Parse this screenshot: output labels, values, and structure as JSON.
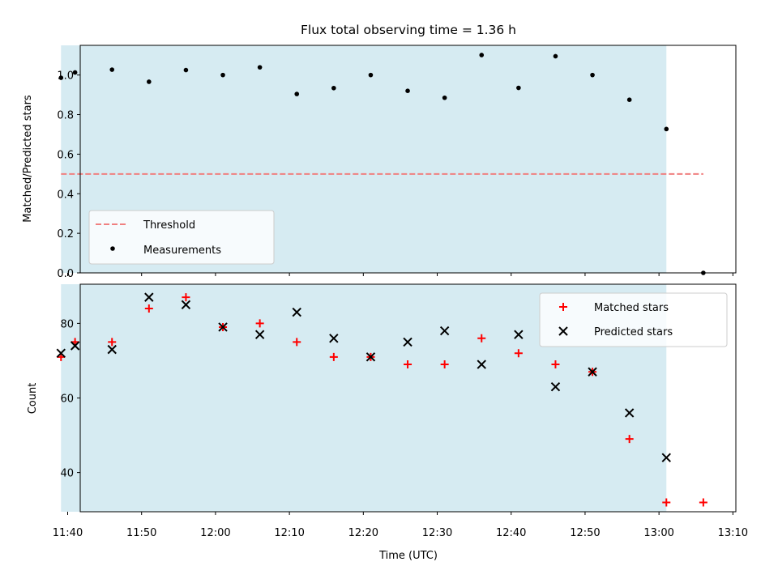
{
  "chart_data": [
    {
      "type": "scatter",
      "title": "Flux total observing time = 1.36 h",
      "xlabel": "",
      "ylabel": "Matched/Predicted stars",
      "xlim": [
        701.7,
        790.4
      ],
      "ylim": [
        0.0,
        1.15
      ],
      "yticks": [
        0.0,
        0.2,
        0.4,
        0.6,
        0.8,
        1.0
      ],
      "ytick_labels": [
        "0.0",
        "0.2",
        "0.4",
        "0.6",
        "0.8",
        "1.0"
      ],
      "shaded_span": [
        699.1,
        781.0
      ],
      "threshold": {
        "name": "Threshold",
        "y": 0.5,
        "x_range": [
          699.1,
          786.0
        ],
        "color": "#f08080"
      },
      "series": [
        {
          "name": "Measurements",
          "marker": "dot",
          "color": "#000000",
          "x": [
            699.1,
            701.0,
            706.0,
            711.0,
            716.0,
            721.0,
            726.0,
            731.0,
            736.0,
            741.0,
            746.0,
            751.0,
            756.0,
            761.0,
            766.0,
            771.0,
            776.0,
            781.0,
            786.0
          ],
          "y": [
            0.986,
            1.013,
            1.027,
            0.966,
            1.025,
            1.0,
            1.039,
            0.904,
            0.934,
            1.0,
            0.92,
            0.885,
            1.101,
            0.935,
            1.095,
            1.0,
            0.875,
            0.727,
            0.0
          ]
        }
      ],
      "legend": {
        "location": "lower-left",
        "entries": [
          "Threshold",
          "Measurements"
        ]
      }
    },
    {
      "type": "scatter",
      "title": "",
      "xlabel": "Time (UTC)",
      "ylabel": "Count",
      "xlim": [
        701.7,
        790.4
      ],
      "ylim": [
        29.5,
        90.5
      ],
      "yticks": [
        40,
        60,
        80
      ],
      "ytick_labels": [
        "40",
        "60",
        "80"
      ],
      "xticks": [
        700,
        710,
        720,
        730,
        740,
        750,
        760,
        770,
        780,
        790
      ],
      "xtick_labels": [
        "11:40",
        "11:50",
        "12:00",
        "12:10",
        "12:20",
        "12:30",
        "12:40",
        "12:50",
        "13:00",
        "13:10"
      ],
      "shaded_span": [
        699.1,
        781.0
      ],
      "series": [
        {
          "name": "Matched stars",
          "marker": "plus",
          "color": "#ff0000",
          "x": [
            699.1,
            701.0,
            706.0,
            711.0,
            716.0,
            721.0,
            726.0,
            731.0,
            736.0,
            741.0,
            746.0,
            751.0,
            756.0,
            761.0,
            766.0,
            771.0,
            776.0,
            781.0,
            786.0
          ],
          "y": [
            71,
            75,
            75,
            84,
            87,
            79,
            80,
            75,
            71,
            71,
            69,
            69,
            76,
            72,
            69,
            67,
            49,
            32,
            32
          ]
        },
        {
          "name": "Predicted stars",
          "marker": "x",
          "color": "#000000",
          "x": [
            699.1,
            701.0,
            706.0,
            711.0,
            716.0,
            721.0,
            726.0,
            731.0,
            736.0,
            741.0,
            746.0,
            751.0,
            756.0,
            761.0,
            766.0,
            771.0,
            776.0,
            781.0
          ],
          "y": [
            72,
            74,
            73,
            87,
            85,
            79,
            77,
            83,
            76,
            71,
            75,
            78,
            69,
            77,
            63,
            67,
            56,
            44
          ]
        }
      ],
      "legend": {
        "location": "upper-right",
        "entries": [
          "Matched stars",
          "Predicted stars"
        ]
      }
    }
  ]
}
